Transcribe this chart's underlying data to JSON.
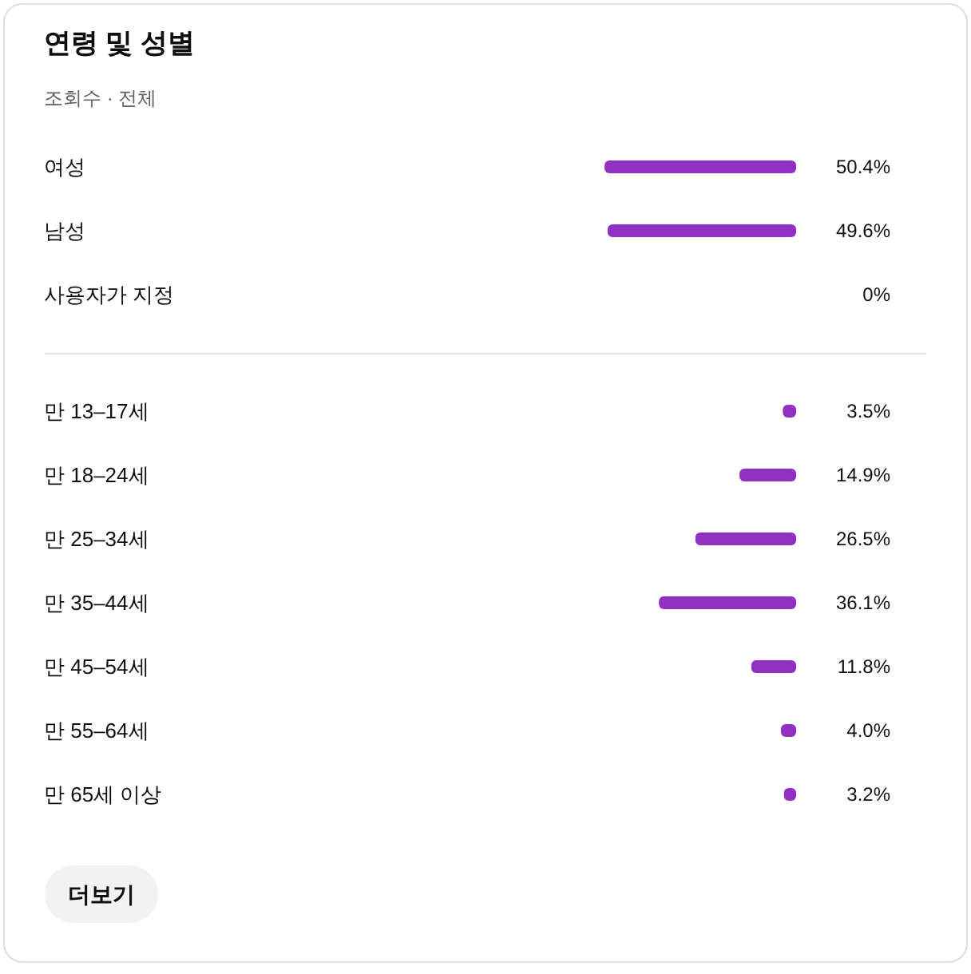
{
  "chart_data": [
    {
      "type": "bar",
      "orientation": "horizontal",
      "title": "연령 및 성별",
      "subtitle": "조회수 · 전체",
      "categories": [
        "여성",
        "남성",
        "사용자가 지정"
      ],
      "values": [
        50.4,
        49.6,
        0
      ],
      "value_labels": [
        "50.4%",
        "49.6%",
        "0%"
      ],
      "color": "#9131c4",
      "tick_labels": "y"
    },
    {
      "type": "bar",
      "orientation": "horizontal",
      "categories": [
        "만 13–17세",
        "만 18–24세",
        "만 25–34세",
        "만 35–44세",
        "만 45–54세",
        "만 55–64세",
        "만 65세 이상"
      ],
      "values": [
        3.5,
        14.9,
        26.5,
        36.1,
        11.8,
        4.0,
        3.2
      ],
      "value_labels": [
        "3.5%",
        "14.9%",
        "26.5%",
        "36.1%",
        "11.8%",
        "4.0%",
        "3.2%"
      ],
      "color": "#9131c4",
      "tick_labels": "y",
      "annotations": [
        "더보기"
      ]
    }
  ]
}
